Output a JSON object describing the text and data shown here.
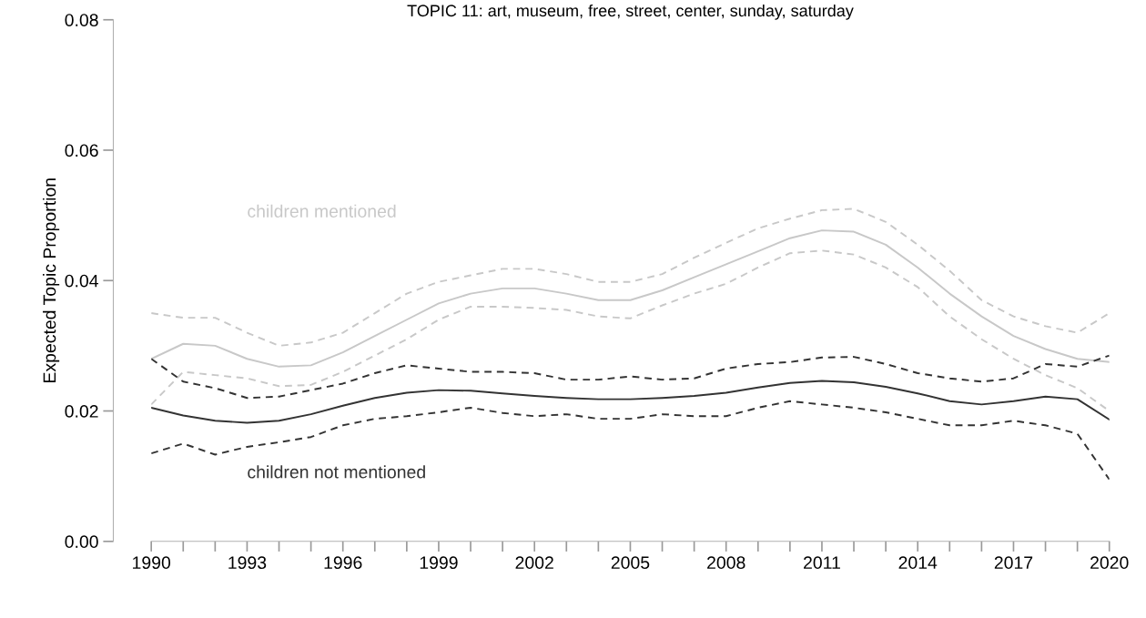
{
  "chart_data": {
    "type": "line",
    "title": "TOPIC 11: art, museum, free, street, center, sunday, saturday",
    "ylabel": "Expected Topic Proportion",
    "x": [
      1990,
      1991,
      1992,
      1993,
      1994,
      1995,
      1996,
      1997,
      1998,
      1999,
      2000,
      2001,
      2002,
      2003,
      2004,
      2005,
      2006,
      2007,
      2008,
      2009,
      2010,
      2011,
      2012,
      2013,
      2014,
      2015,
      2016,
      2017,
      2018,
      2019,
      2020
    ],
    "series": [
      {
        "name": "children mentioned",
        "color": "#c8c8c8",
        "line_style": "solid",
        "values": [
          0.028,
          0.0303,
          0.03,
          0.028,
          0.0268,
          0.027,
          0.029,
          0.0315,
          0.034,
          0.0365,
          0.038,
          0.0388,
          0.0388,
          0.038,
          0.037,
          0.037,
          0.0385,
          0.0405,
          0.0425,
          0.0445,
          0.0465,
          0.0477,
          0.0475,
          0.0455,
          0.042,
          0.038,
          0.0345,
          0.0315,
          0.0295,
          0.028,
          0.0275
        ]
      },
      {
        "color": "#c8c8c8",
        "line_style": "dashed",
        "values": [
          0.035,
          0.0343,
          0.0343,
          0.032,
          0.03,
          0.0305,
          0.032,
          0.035,
          0.038,
          0.0398,
          0.0408,
          0.0418,
          0.0418,
          0.041,
          0.0398,
          0.0398,
          0.041,
          0.0435,
          0.0458,
          0.048,
          0.0495,
          0.0508,
          0.051,
          0.049,
          0.0455,
          0.0415,
          0.037,
          0.0345,
          0.033,
          0.032,
          0.035
        ]
      },
      {
        "color": "#c8c8c8",
        "line_style": "dashed",
        "values": [
          0.021,
          0.026,
          0.0255,
          0.025,
          0.0238,
          0.024,
          0.026,
          0.0285,
          0.031,
          0.034,
          0.036,
          0.036,
          0.0358,
          0.0355,
          0.0345,
          0.0342,
          0.0362,
          0.038,
          0.0395,
          0.042,
          0.0442,
          0.0446,
          0.044,
          0.042,
          0.039,
          0.0345,
          0.031,
          0.028,
          0.0255,
          0.0235,
          0.02
        ]
      },
      {
        "name": "children not mentioned",
        "color": "#333333",
        "line_style": "solid",
        "values": [
          0.0205,
          0.0193,
          0.0185,
          0.0182,
          0.0185,
          0.0195,
          0.0208,
          0.022,
          0.0228,
          0.0232,
          0.0231,
          0.0227,
          0.0223,
          0.022,
          0.0218,
          0.0218,
          0.022,
          0.0223,
          0.0228,
          0.0236,
          0.0243,
          0.0246,
          0.0244,
          0.0237,
          0.0227,
          0.0215,
          0.021,
          0.0215,
          0.0222,
          0.0218,
          0.0187
        ]
      },
      {
        "color": "#333333",
        "line_style": "dashed",
        "values": [
          0.028,
          0.0245,
          0.0235,
          0.022,
          0.0222,
          0.0232,
          0.0242,
          0.0258,
          0.027,
          0.0265,
          0.026,
          0.026,
          0.0258,
          0.0248,
          0.0248,
          0.0253,
          0.0248,
          0.025,
          0.0265,
          0.0272,
          0.0275,
          0.0282,
          0.0283,
          0.0272,
          0.0258,
          0.025,
          0.0245,
          0.025,
          0.0272,
          0.0268,
          0.0285
        ]
      },
      {
        "color": "#333333",
        "line_style": "dashed",
        "values": [
          0.0135,
          0.015,
          0.0133,
          0.0145,
          0.0152,
          0.016,
          0.0178,
          0.0188,
          0.0192,
          0.0198,
          0.0205,
          0.0197,
          0.0192,
          0.0195,
          0.0188,
          0.0188,
          0.0195,
          0.0192,
          0.0192,
          0.0205,
          0.0215,
          0.021,
          0.0205,
          0.0198,
          0.0188,
          0.0178,
          0.0178,
          0.0185,
          0.0178,
          0.0165,
          0.0095
        ]
      }
    ],
    "xlim": [
      1990,
      2020
    ],
    "xticks": [
      1990,
      {
        "value": 1991,
        "label": null
      },
      {
        "value": 1992,
        "label": null
      },
      1993,
      {
        "value": 1994,
        "label": null
      },
      {
        "value": 1995,
        "label": null
      },
      1996,
      {
        "value": 1997,
        "label": null
      },
      {
        "value": 1998,
        "label": null
      },
      1999,
      {
        "value": 2000,
        "label": null
      },
      {
        "value": 2001,
        "label": null
      },
      2002,
      {
        "value": 2003,
        "label": null
      },
      {
        "value": 2004,
        "label": null
      },
      2005,
      {
        "value": 2006,
        "label": null
      },
      {
        "value": 2007,
        "label": null
      },
      2008,
      {
        "value": 2009,
        "label": null
      },
      {
        "value": 2010,
        "label": null
      },
      2011,
      {
        "value": 2012,
        "label": null
      },
      {
        "value": 2013,
        "label": null
      },
      2014,
      {
        "value": 2015,
        "label": null
      },
      {
        "value": 2016,
        "label": null
      },
      2017,
      {
        "value": 2018,
        "label": null
      },
      {
        "value": 2019,
        "label": null
      },
      2020
    ],
    "ylim": [
      0,
      0.08
    ],
    "yticks": [
      {
        "value": 0,
        "label": "0.00"
      },
      {
        "value": 0.02,
        "label": "0.02"
      },
      {
        "value": 0.04,
        "label": "0.04"
      },
      {
        "value": 0.06,
        "label": "0.06"
      },
      {
        "value": 0.08,
        "label": "0.08"
      }
    ],
    "grid": false,
    "legend": false
  }
}
